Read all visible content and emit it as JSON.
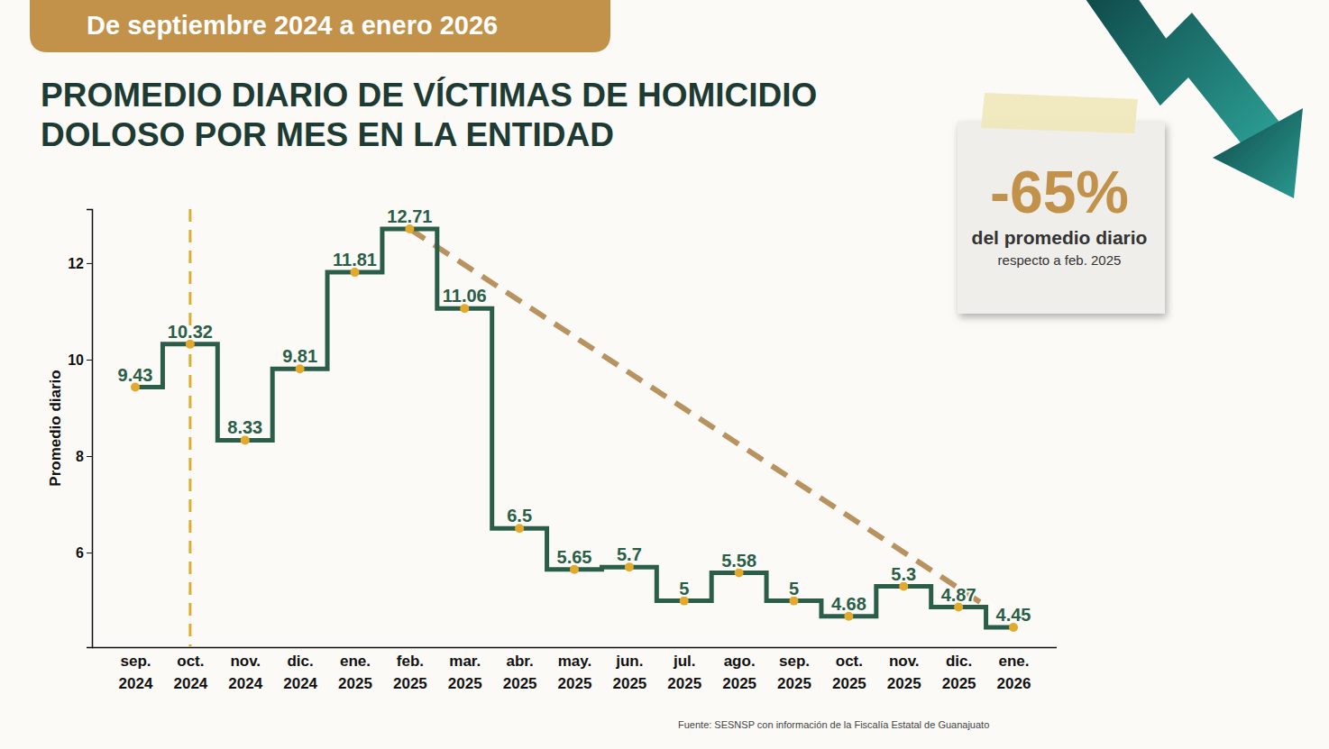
{
  "chart_data": {
    "type": "step",
    "subtitle": "De septiembre 2024 a enero 2026",
    "title": [
      "PROMEDIO DIARIO DE VÍCTIMAS DE HOMICIDIO",
      "DOLOSO POR MES EN LA ENTIDAD"
    ],
    "y_label": "Promedio diario",
    "categories": [
      "sep. 2024",
      "oct. 2024",
      "nov. 2024",
      "dic. 2024",
      "ene. 2025",
      "feb. 2025",
      "mar. 2025",
      "abr. 2025",
      "may. 2025",
      "jun. 2025",
      "jul. 2025",
      "ago. 2025",
      "sep. 2025",
      "oct. 2025",
      "nov. 2025",
      "dic. 2025",
      "ene. 2026"
    ],
    "values": [
      9.43,
      10.32,
      8.33,
      9.81,
      11.81,
      12.71,
      11.06,
      6.5,
      5.65,
      5.7,
      5,
      5.58,
      5,
      4.68,
      5.3,
      4.87,
      4.45
    ],
    "color": "#2b5e48",
    "marker": "circle",
    "data_labels": true,
    "grid": false,
    "ylim": [
      4.04,
      13.12
    ],
    "yticks": [
      6,
      8,
      10,
      12
    ],
    "vline": "oct. 2024",
    "trend": {
      "from": "feb. 2025",
      "to": "ene. 2026"
    },
    "callout": {
      "text": "-65%",
      "line1": "del promedio diario",
      "line2": "respecto a feb. 2025"
    },
    "source": "Fuente: SESNSP con información de la Fiscalía Estatal de Guanajuato"
  }
}
